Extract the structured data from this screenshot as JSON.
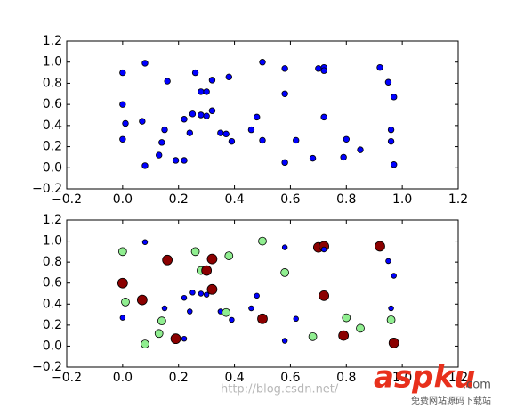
{
  "chart_data": [
    {
      "type": "scatter",
      "x": [
        0.0,
        0.08,
        0.0,
        0.01,
        0.0,
        0.07,
        0.08,
        0.16,
        0.15,
        0.14,
        0.13,
        0.19,
        0.22,
        0.26,
        0.28,
        0.3,
        0.32,
        0.38,
        0.22,
        0.25,
        0.28,
        0.3,
        0.32,
        0.24,
        0.35,
        0.37,
        0.39,
        0.5,
        0.58,
        0.58,
        0.48,
        0.46,
        0.5,
        0.62,
        0.58,
        0.68,
        0.7,
        0.72,
        0.72,
        0.72,
        0.8,
        0.79,
        0.85,
        0.92,
        0.95,
        0.96,
        0.96,
        0.97,
        0.97
      ],
      "y": [
        0.9,
        0.99,
        0.6,
        0.42,
        0.27,
        0.44,
        0.02,
        0.82,
        0.36,
        0.24,
        0.12,
        0.07,
        0.07,
        0.9,
        0.72,
        0.72,
        0.83,
        0.86,
        0.46,
        0.51,
        0.5,
        0.49,
        0.54,
        0.33,
        0.33,
        0.32,
        0.25,
        1.0,
        0.94,
        0.7,
        0.48,
        0.36,
        0.26,
        0.26,
        0.05,
        0.09,
        0.94,
        0.95,
        0.92,
        0.48,
        0.27,
        0.1,
        0.17,
        0.95,
        0.81,
        0.36,
        0.25,
        0.67,
        0.03
      ],
      "color": "#0000ff",
      "xlim": [
        -0.2,
        1.2
      ],
      "ylim": [
        -0.2,
        1.2
      ],
      "xticks": [
        {
          "value": -0.2,
          "label": "−0.2"
        },
        {
          "value": 0,
          "label": "0.0"
        },
        0.2,
        0.4,
        0.6,
        0.8,
        {
          "value": 1,
          "label": "1.0"
        },
        1.2
      ],
      "yticks": [
        {
          "value": -0.2,
          "label": "−0.2"
        },
        {
          "value": 0,
          "label": "0.0"
        },
        0.2,
        0.4,
        0.6,
        0.8,
        {
          "value": 1,
          "label": "1.0"
        },
        1.2
      ]
    },
    {
      "type": "scatter",
      "x": [
        0.0,
        0.08,
        0.0,
        0.01,
        0.0,
        0.07,
        0.08,
        0.16,
        0.15,
        0.14,
        0.13,
        0.19,
        0.22,
        0.26,
        0.28,
        0.3,
        0.32,
        0.38,
        0.22,
        0.25,
        0.28,
        0.3,
        0.32,
        0.24,
        0.35,
        0.37,
        0.39,
        0.5,
        0.58,
        0.58,
        0.48,
        0.46,
        0.5,
        0.62,
        0.58,
        0.68,
        0.7,
        0.72,
        0.72,
        0.72,
        0.8,
        0.79,
        0.85,
        0.92,
        0.95,
        0.96,
        0.96,
        0.97,
        0.97
      ],
      "y": [
        0.9,
        0.99,
        0.6,
        0.42,
        0.27,
        0.44,
        0.02,
        0.82,
        0.36,
        0.24,
        0.12,
        0.07,
        0.07,
        0.9,
        0.72,
        0.72,
        0.83,
        0.86,
        0.46,
        0.51,
        0.5,
        0.49,
        0.54,
        0.33,
        0.33,
        0.32,
        0.25,
        1.0,
        0.94,
        0.7,
        0.48,
        0.36,
        0.26,
        0.26,
        0.05,
        0.09,
        0.94,
        0.95,
        0.92,
        0.48,
        0.27,
        0.1,
        0.17,
        0.95,
        0.81,
        0.36,
        0.25,
        0.67,
        0.03
      ],
      "sizes": [
        20,
        8,
        30,
        20,
        8,
        30,
        20,
        30,
        8,
        20,
        20,
        30,
        8,
        20,
        20,
        30,
        30,
        20,
        8,
        8,
        8,
        8,
        30,
        8,
        8,
        20,
        8,
        20,
        8,
        20,
        8,
        8,
        30,
        8,
        8,
        20,
        30,
        30,
        8,
        30,
        20,
        30,
        20,
        30,
        8,
        8,
        20,
        8,
        30
      ],
      "colors": [
        "#90ee90",
        "#0000ff",
        "#8b0000",
        "#90ee90",
        "#0000ff",
        "#8b0000",
        "#90ee90",
        "#8b0000",
        "#0000ff",
        "#90ee90",
        "#90ee90",
        "#8b0000",
        "#0000ff",
        "#90ee90",
        "#90ee90",
        "#8b0000",
        "#8b0000",
        "#90ee90",
        "#0000ff",
        "#0000ff",
        "#0000ff",
        "#0000ff",
        "#8b0000",
        "#0000ff",
        "#0000ff",
        "#90ee90",
        "#0000ff",
        "#90ee90",
        "#0000ff",
        "#90ee90",
        "#0000ff",
        "#0000ff",
        "#8b0000",
        "#0000ff",
        "#0000ff",
        "#90ee90",
        "#8b0000",
        "#8b0000",
        "#0000ff",
        "#8b0000",
        "#90ee90",
        "#8b0000",
        "#90ee90",
        "#8b0000",
        "#0000ff",
        "#0000ff",
        "#90ee90",
        "#0000ff",
        "#8b0000"
      ],
      "xlim": [
        -0.2,
        1.2
      ],
      "ylim": [
        -0.2,
        1.2
      ],
      "xticks": [
        {
          "value": -0.2,
          "label": "−0.2"
        },
        {
          "value": 0,
          "label": "0.0"
        },
        0.2,
        0.4,
        0.6,
        0.8,
        {
          "value": 1,
          "label": "1.0"
        },
        1.2
      ],
      "yticks": [
        {
          "value": -0.2,
          "label": "−0.2"
        },
        {
          "value": 0,
          "label": "0.0"
        },
        0.2,
        0.4,
        0.6,
        0.8,
        {
          "value": 1,
          "label": "1.0"
        },
        1.2
      ]
    }
  ],
  "watermark": {
    "url": "http://blog.csdn.net/",
    "brand": "aspku",
    "domain": ".com",
    "slogan": "免费网站源码下载站"
  }
}
